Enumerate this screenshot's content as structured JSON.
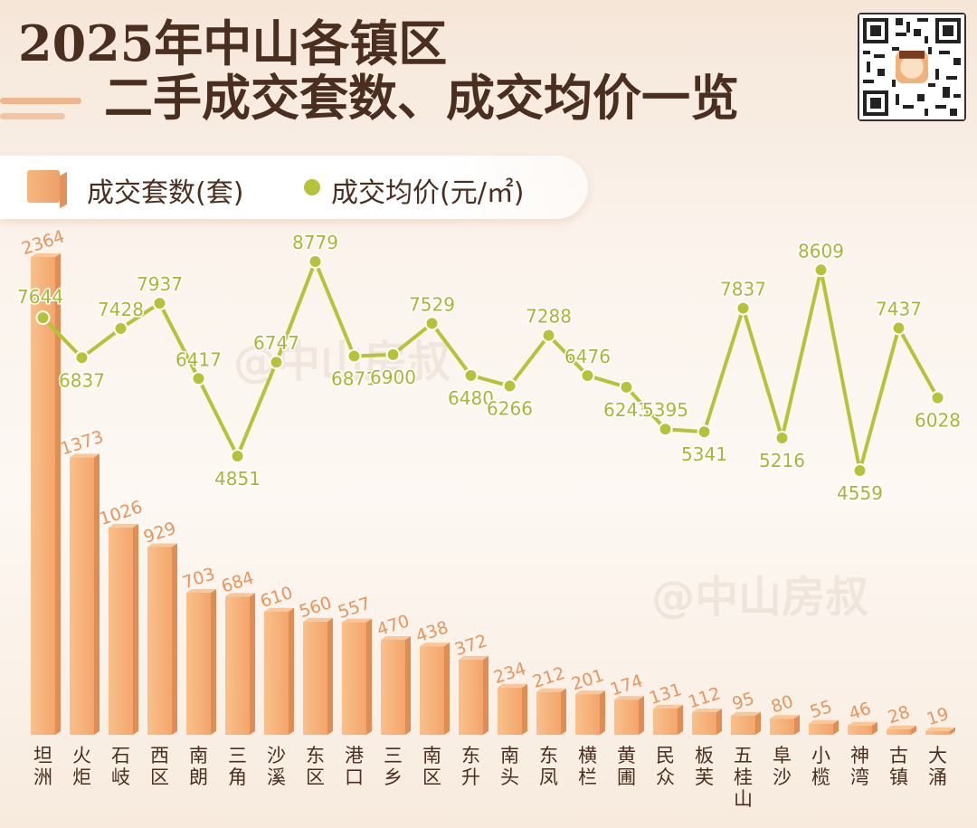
{
  "header": {
    "title_line1": "2025年中山各镇区",
    "title_line2": "二手成交套数、成交均价一览"
  },
  "legend": {
    "bars_label": "成交套数(套)",
    "line_label": "成交均价(元/㎡)"
  },
  "watermark": "@中山房叔",
  "colors": {
    "bar": "#f3a66c",
    "bar_side": "#e08d55",
    "bar_label": "#e4965e",
    "line": "#b6c23a",
    "line_label": "#a9b536",
    "title": "#4a2e1f"
  },
  "chart_data": {
    "type": "bar+line",
    "categories": [
      "坦洲",
      "火炬",
      "石岐",
      "西区",
      "南朗",
      "三角",
      "沙溪",
      "东区",
      "港口",
      "三乡",
      "南区",
      "东升",
      "南头",
      "东凤",
      "横栏",
      "黄圃",
      "民众",
      "板芙",
      "五桂山",
      "阜沙",
      "小榄",
      "神湾",
      "古镇",
      "大涌"
    ],
    "series": [
      {
        "name": "成交套数(套)",
        "type": "bar",
        "values": [
          2364,
          1373,
          1026,
          929,
          703,
          684,
          610,
          560,
          557,
          470,
          438,
          372,
          234,
          212,
          201,
          174,
          131,
          112,
          95,
          80,
          55,
          46,
          28,
          19
        ]
      },
      {
        "name": "成交均价(元/㎡)",
        "type": "line",
        "values": [
          7644,
          6837,
          7428,
          7937,
          6417,
          4851,
          6747,
          8779,
          6871,
          6900,
          7529,
          6480,
          6266,
          7288,
          6476,
          6243,
          5395,
          5341,
          7837,
          5216,
          8609,
          4559,
          7437,
          6028
        ]
      }
    ]
  }
}
